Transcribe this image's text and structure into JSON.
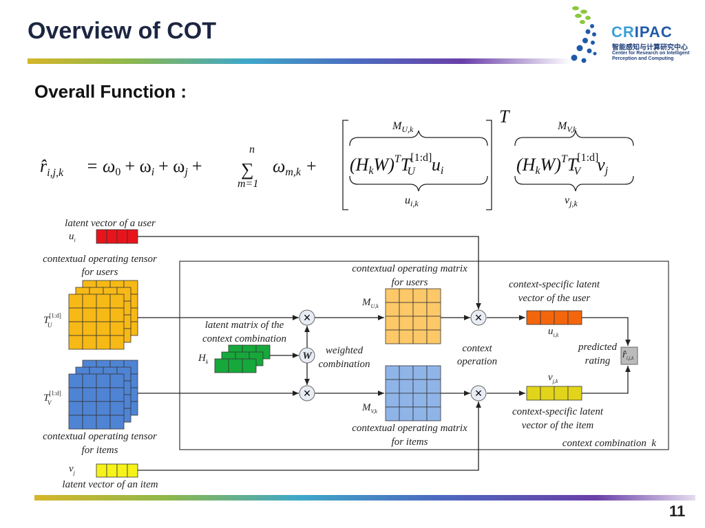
{
  "header": {
    "title": "Overview of COT",
    "subtitle": "Overall Function :",
    "page_number": "11"
  },
  "logo": {
    "name_a": "CR",
    "name_b": "IPAC",
    "chinese": "智能感知与计算研究中心",
    "english_1": "Center for Research on Intelligent",
    "english_2": "Perception and Computing"
  },
  "formula": {
    "r": "r̂",
    "r_sub": "i,j,k",
    "eq": "= ω",
    "w0_sub": "0",
    "plus1": "+ ω",
    "wi_sub": "i",
    "plus2": "+ ω",
    "wj_sub": "j",
    "plus3": "+",
    "sigma": "∑",
    "sigma_top": "n",
    "sigma_bot": "m=1",
    "wmk": "ω",
    "wmk_sub": "m,k",
    "plus4": "+",
    "hkw_u": "(H",
    "k": "k",
    "w_u": "W)",
    "T": "T",
    "tu": "T",
    "tu_sup": "[1:d]",
    "tu_sub": "U",
    "ui": "u",
    "ui_sub": "i",
    "outer_T": "T",
    "hkw_v": "(H",
    "w_v": "W)",
    "tv": "T",
    "tv_sup": "[1:d]",
    "tv_sub": "V",
    "vj": "v",
    "vj_sub": "j",
    "over_u": "M",
    "over_u_sub": "U,k",
    "under_u": "u",
    "under_u_sub": "i,k",
    "over_v": "M",
    "over_v_sub": "V,k",
    "under_v": "v",
    "under_v_sub": "j,k"
  },
  "diagram": {
    "latent_user": "latent vector of a user",
    "ui": "u",
    "ui_sub": "i",
    "tensor_users_1": "contextual operating tensor",
    "tensor_users_2": "for users",
    "tu": "T",
    "tu_sup": "[1:d]",
    "tu_sub": "U",
    "latent_ctx_1": "latent matrix of the",
    "latent_ctx_2": "context combination",
    "hk": "H",
    "hk_sub": "k",
    "w": "W",
    "weighted_1": "weighted",
    "weighted_2": "combination",
    "tv": "T",
    "tv_sup": "[1:d]",
    "tv_sub": "V",
    "tensor_items_1": "contextual operating tensor",
    "tensor_items_2": "for items",
    "vj": "v",
    "vj_sub": "j",
    "latent_item": "latent vector of an item",
    "matrix_users_1": "contextual operating matrix",
    "matrix_users_2": "for users",
    "mu": "M",
    "mu_sub": "U,k",
    "mv": "M",
    "mv_sub": "V,k",
    "matrix_items_1": "contextual operating matrix",
    "matrix_items_2": "for items",
    "ctx_op_1": "context",
    "ctx_op_2": "operation",
    "cs_user_1": "context-specific latent",
    "cs_user_2": "vector of the user",
    "uik": "u",
    "uik_sub": "i,k",
    "cs_item_1": "context-specific latent",
    "cs_item_2": "vector of the item",
    "vjk": "v",
    "vjk_sub": "j,k",
    "pred_1": "predicted",
    "pred_2": "rating",
    "rhat": "r̂",
    "rhat_sub": "i,j,k",
    "ctx_comb": "context combination  k",
    "times": "×"
  },
  "colors": {
    "user": "#e8141c",
    "yellow_tensor": "#f7b916",
    "blue_tensor": "#4f84d4",
    "green": "#17a83c",
    "mu": "#fdc868",
    "mv": "#8fb4e8",
    "uik": "#f4660c",
    "vjk": "#e2d41a",
    "vj": "#f6f21a"
  }
}
